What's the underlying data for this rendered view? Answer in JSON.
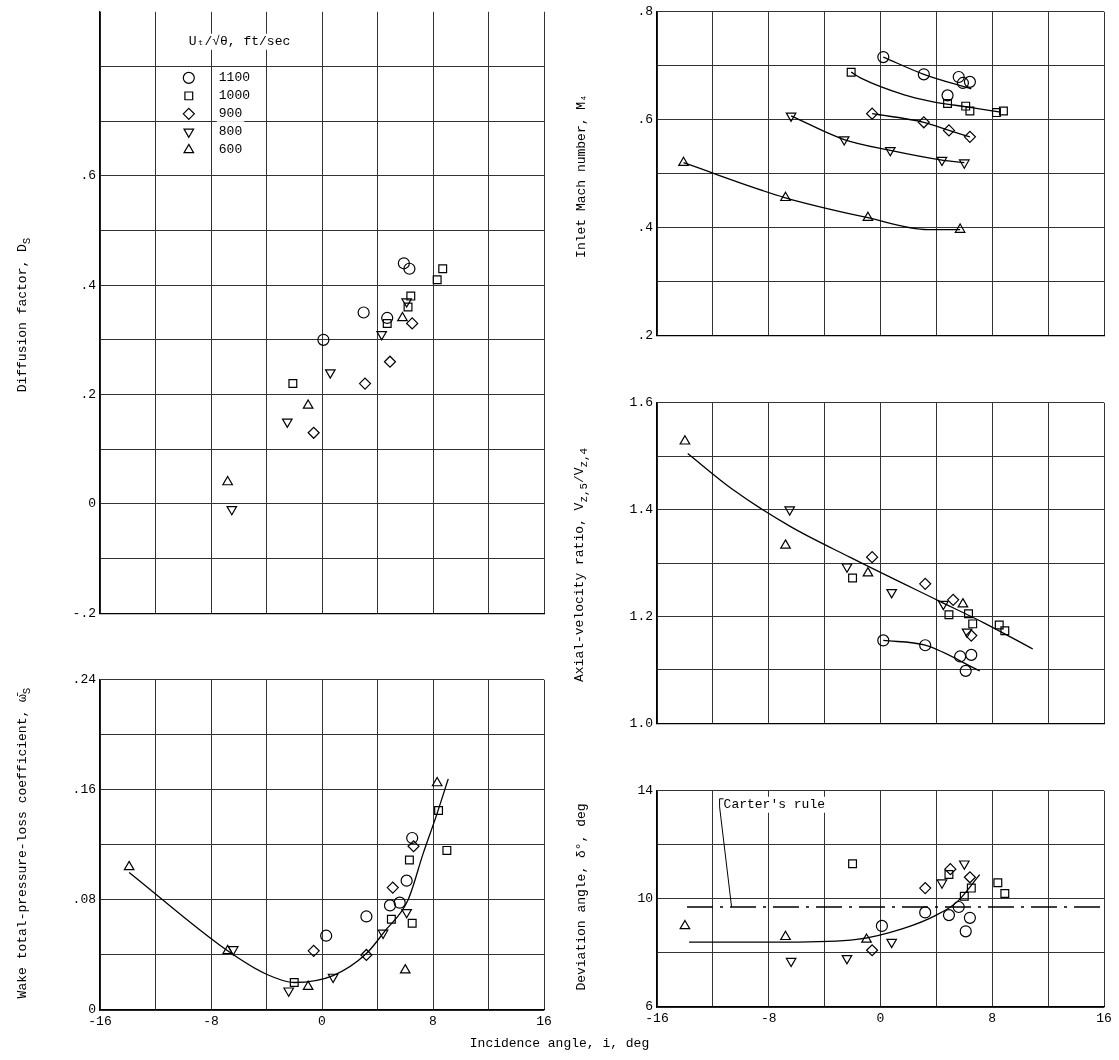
{
  "chart_data": [
    {
      "type": "scatter",
      "ylabel": "Diffusion factor, D$_{S}$",
      "legend_title": "Uₜ/√θ, ft/sec",
      "legend": "top left",
      "grid": true,
      "tick_labels": "y",
      "xlim": [
        -16,
        16
      ],
      "xticks": [
        -16,
        {
          "value": -12,
          "label": null
        },
        -8,
        {
          "value": -4,
          "label": null
        },
        0,
        {
          "value": 4,
          "label": null
        },
        8,
        {
          "value": 12,
          "label": null
        },
        16
      ],
      "ylim": [
        -0.2,
        0.9
      ],
      "yticks": [
        {
          "value": -0.2,
          "label": "-.2"
        },
        {
          "value": -0.1,
          "label": null
        },
        0,
        {
          "value": 0.1,
          "label": null
        },
        {
          "value": 0.2,
          "label": ".2"
        },
        {
          "value": 0.3,
          "label": null
        },
        {
          "value": 0.4,
          "label": ".4"
        },
        {
          "value": 0.5,
          "label": null
        },
        {
          "value": 0.6,
          "label": ".6"
        },
        {
          "value": 0.7,
          "label": null
        },
        {
          "value": 0.8,
          "label": null
        }
      ],
      "series": [
        {
          "name": "1100",
          "color": "#000000",
          "marker": "circle",
          "x": [
            0.1,
            3.0,
            4.7,
            5.9,
            6.3
          ],
          "values": [
            0.3,
            0.35,
            0.34,
            0.44,
            0.43
          ]
        },
        {
          "name": "1000",
          "color": "#000000",
          "marker": "square",
          "x": [
            -2.1,
            4.7,
            6.2,
            6.4,
            8.3,
            8.7
          ],
          "values": [
            0.22,
            0.33,
            0.36,
            0.38,
            0.41,
            0.43
          ]
        },
        {
          "name": "900",
          "color": "#000000",
          "marker": "diamond",
          "x": [
            -0.6,
            3.1,
            4.9,
            6.5
          ],
          "values": [
            0.13,
            0.22,
            0.26,
            0.33
          ]
        },
        {
          "name": "800",
          "color": "#000000",
          "marker": "triangle_down",
          "x": [
            -6.5,
            -2.5,
            0.6,
            4.3,
            6.1
          ],
          "values": [
            -0.01,
            0.15,
            0.24,
            0.31,
            0.37
          ]
        },
        {
          "name": "600",
          "color": "#000000",
          "marker": "triangle",
          "x": [
            -6.8,
            -1.0,
            5.8
          ],
          "values": [
            0.04,
            0.18,
            0.34
          ]
        }
      ]
    },
    {
      "type": "scatter",
      "ylabel": "Wake total-pressure-loss coefficient, ω̄$_{S}$",
      "grid": true,
      "xlim": [
        -16,
        16
      ],
      "xticks": [
        -16,
        {
          "value": -12,
          "label": null
        },
        -8,
        {
          "value": -4,
          "label": null
        },
        0,
        {
          "value": 4,
          "label": null
        },
        8,
        {
          "value": 12,
          "label": null
        },
        16
      ],
      "ylim": [
        0,
        0.24
      ],
      "yticks": [
        0,
        {
          "value": 0.04,
          "label": null
        },
        {
          "value": 0.08,
          "label": ".08"
        },
        {
          "value": 0.12,
          "label": null
        },
        {
          "value": 0.16,
          "label": ".16"
        },
        {
          "value": 0.2,
          "label": null
        },
        {
          "value": 0.24,
          "label": ".24"
        }
      ],
      "series": [
        {
          "color": "#000000",
          "marker": "circle",
          "x": [
            0.3,
            3.2,
            4.9,
            5.6,
            6.1,
            6.5
          ],
          "values": [
            0.054,
            0.068,
            0.076,
            0.078,
            0.094,
            0.125
          ]
        },
        {
          "color": "#000000",
          "marker": "square",
          "x": [
            -2.0,
            5.0,
            6.3,
            6.5,
            8.4,
            9.0
          ],
          "values": [
            0.02,
            0.066,
            0.109,
            0.063,
            0.145,
            0.116
          ]
        },
        {
          "color": "#000000",
          "marker": "diamond",
          "x": [
            -0.6,
            3.2,
            5.1,
            6.6
          ],
          "values": [
            0.043,
            0.04,
            0.089,
            0.119
          ]
        },
        {
          "color": "#000000",
          "marker": "triangle_down",
          "x": [
            -6.4,
            -2.4,
            0.8,
            4.4,
            6.1
          ],
          "values": [
            0.044,
            0.014,
            0.024,
            0.056,
            0.071
          ]
        },
        {
          "color": "#000000",
          "marker": "triangle",
          "x": [
            -13.9,
            -6.8,
            -1.0,
            6.0,
            8.3
          ],
          "values": [
            0.104,
            0.043,
            0.017,
            0.029,
            0.165
          ]
        },
        {
          "type": "line",
          "color": "#000000",
          "marker": "none",
          "x": [
            -13.9,
            -6.8,
            -4.0,
            -2.0,
            0.8,
            3.2,
            4.5,
            6.2,
            7.3,
            8.2,
            9.1
          ],
          "values": [
            0.1,
            0.043,
            0.026,
            0.02,
            0.025,
            0.041,
            0.057,
            0.08,
            0.114,
            0.14,
            0.168
          ]
        }
      ]
    },
    {
      "type": "scatter",
      "ylabel": "Inlet Mach number, M₄",
      "grid": true,
      "tick_labels": "y",
      "xlim": [
        -16,
        16
      ],
      "xticks": [
        -16,
        {
          "value": -12,
          "label": null
        },
        -8,
        {
          "value": -4,
          "label": null
        },
        0,
        {
          "value": 4,
          "label": null
        },
        8,
        {
          "value": 12,
          "label": null
        },
        16
      ],
      "ylim": [
        0.2,
        0.8
      ],
      "yticks": [
        {
          "value": 0.2,
          "label": ".2"
        },
        {
          "value": 0.3,
          "label": null
        },
        {
          "value": 0.4,
          "label": ".4"
        },
        {
          "value": 0.5,
          "label": null
        },
        {
          "value": 0.6,
          "label": ".6"
        },
        {
          "value": 0.7,
          "label": null
        },
        {
          "value": 0.8,
          "label": ".8"
        }
      ],
      "series": [
        {
          "color": "#000000",
          "marker": "circle",
          "x": [
            0.2,
            3.1,
            4.8,
            5.6,
            5.9,
            6.4
          ],
          "values": [
            0.716,
            0.684,
            0.645,
            0.679,
            0.668,
            0.67
          ]
        },
        {
          "color": "#000000",
          "marker": "square",
          "x": [
            -2.1,
            4.8,
            6.1,
            6.4,
            8.3,
            8.8
          ],
          "values": [
            0.688,
            0.63,
            0.625,
            0.616,
            0.613,
            0.616
          ]
        },
        {
          "color": "#000000",
          "marker": "diamond",
          "x": [
            -0.6,
            3.1,
            4.9,
            6.4
          ],
          "values": [
            0.611,
            0.595,
            0.58,
            0.568
          ]
        },
        {
          "color": "#000000",
          "marker": "triangle_down",
          "x": [
            -6.4,
            -2.6,
            0.7,
            4.4,
            6.0
          ],
          "values": [
            0.607,
            0.563,
            0.543,
            0.525,
            0.52
          ]
        },
        {
          "color": "#000000",
          "marker": "triangle",
          "x": [
            -14.1,
            -6.8,
            -0.9,
            5.7
          ],
          "values": [
            0.52,
            0.455,
            0.418,
            0.396
          ]
        },
        {
          "type": "line",
          "color": "#000000",
          "marker": "none",
          "x": [
            0.2,
            3.1,
            6.5
          ],
          "values": [
            0.716,
            0.684,
            0.657
          ]
        },
        {
          "type": "line",
          "color": "#000000",
          "marker": "none",
          "x": [
            -2.1,
            -1.4,
            1.7,
            3.6,
            6.3,
            8.6
          ],
          "values": [
            0.688,
            0.677,
            0.646,
            0.634,
            0.623,
            0.614
          ]
        },
        {
          "type": "line",
          "color": "#000000",
          "marker": "none",
          "x": [
            -0.6,
            3.1,
            4.9,
            6.4
          ],
          "values": [
            0.611,
            0.595,
            0.58,
            0.568
          ]
        },
        {
          "type": "line",
          "color": "#000000",
          "marker": "none",
          "x": [
            -6.4,
            -2.6,
            0.7,
            4.4,
            6.0
          ],
          "values": [
            0.607,
            0.563,
            0.543,
            0.525,
            0.52
          ]
        },
        {
          "type": "line",
          "color": "#000000",
          "marker": "none",
          "x": [
            -14.1,
            -6.8,
            -0.9,
            3.4,
            5.7
          ],
          "values": [
            0.52,
            0.455,
            0.418,
            0.396,
            0.396
          ]
        }
      ]
    },
    {
      "type": "scatter",
      "ylabel": "Axial-velocity ratio, V$_{z,5}$/V$_{z,4}$",
      "grid": true,
      "tick_labels": "y",
      "xlim": [
        -16,
        16
      ],
      "xticks": [
        -16,
        {
          "value": -12,
          "label": null
        },
        -8,
        {
          "value": -4,
          "label": null
        },
        0,
        {
          "value": 4,
          "label": null
        },
        8,
        {
          "value": 12,
          "label": null
        },
        16
      ],
      "ylim": [
        1.0,
        1.6
      ],
      "yticks": [
        {
          "value": 1.0,
          "label": "1.0"
        },
        {
          "value": 1.1,
          "label": null
        },
        1.2,
        {
          "value": 1.3,
          "label": null
        },
        1.4,
        {
          "value": 1.5,
          "label": null
        },
        1.6
      ],
      "series": [
        {
          "color": "#000000",
          "marker": "circle",
          "x": [
            0.2,
            3.2,
            5.7,
            6.1,
            6.5
          ],
          "values": [
            1.155,
            1.146,
            1.125,
            1.098,
            1.128
          ]
        },
        {
          "color": "#000000",
          "marker": "square",
          "x": [
            -2.0,
            4.9,
            6.3,
            6.6,
            8.5,
            8.9
          ],
          "values": [
            1.272,
            1.203,
            1.205,
            1.186,
            1.184,
            1.173
          ]
        },
        {
          "color": "#000000",
          "marker": "diamond",
          "x": [
            -0.6,
            3.2,
            5.2,
            6.5
          ],
          "values": [
            1.311,
            1.261,
            1.231,
            1.164
          ]
        },
        {
          "color": "#000000",
          "marker": "triangle_down",
          "x": [
            -6.5,
            -2.4,
            0.8,
            4.5,
            6.2
          ],
          "values": [
            1.4,
            1.293,
            1.245,
            1.223,
            1.171
          ]
        },
        {
          "color": "#000000",
          "marker": "triangle",
          "x": [
            -14.0,
            -6.8,
            -0.9,
            5.9
          ],
          "values": [
            1.528,
            1.333,
            1.281,
            1.223
          ]
        },
        {
          "type": "line",
          "color": "#000000",
          "marker": "none",
          "x": [
            -13.8,
            -10.6,
            -6.5,
            -2.2,
            4.1,
            7.4,
            10.9
          ],
          "values": [
            1.505,
            1.438,
            1.369,
            1.311,
            1.23,
            1.188,
            1.139
          ]
        },
        {
          "type": "line",
          "color": "#000000",
          "marker": "none",
          "x": [
            0.2,
            3.2,
            7.1
          ],
          "values": [
            1.155,
            1.146,
            1.098
          ]
        }
      ]
    },
    {
      "type": "scatter",
      "ylabel": "Deviation angle, δ°, deg",
      "xlabel": "Incidence angle, i, deg",
      "grid": true,
      "xlim": [
        -16,
        16
      ],
      "xticks": [
        -16,
        {
          "value": -12,
          "label": null
        },
        -8,
        {
          "value": -4,
          "label": null
        },
        0,
        {
          "value": 4,
          "label": null
        },
        8,
        {
          "value": 12,
          "label": null
        },
        16
      ],
      "ylim": [
        6,
        14
      ],
      "yticks": [
        6,
        {
          "value": 8,
          "label": null
        },
        10,
        {
          "value": 12,
          "label": null
        },
        14
      ],
      "ref_lines": [
        {
          "axis": "y",
          "value": 9.7,
          "label": "Carter's rule",
          "line_style": "dashed"
        }
      ],
      "series": [
        {
          "color": "#000000",
          "marker": "circle",
          "x": [
            0.1,
            3.2,
            4.9,
            5.6,
            6.1,
            6.4
          ],
          "values": [
            9.0,
            9.5,
            9.4,
            9.7,
            8.8,
            9.3
          ]
        },
        {
          "color": "#000000",
          "marker": "square",
          "x": [
            -2.0,
            4.9,
            6.0,
            6.5,
            8.4,
            8.9
          ],
          "values": [
            11.3,
            10.9,
            10.1,
            10.4,
            10.6,
            10.2
          ]
        },
        {
          "color": "#000000",
          "marker": "diamond",
          "x": [
            -0.6,
            3.2,
            5.0,
            6.4
          ],
          "values": [
            8.1,
            10.4,
            11.1,
            10.8
          ]
        },
        {
          "color": "#000000",
          "marker": "triangle_down",
          "x": [
            -6.4,
            -2.4,
            0.8,
            4.4,
            6.0
          ],
          "values": [
            7.7,
            7.8,
            8.4,
            10.6,
            11.3
          ]
        },
        {
          "color": "#000000",
          "marker": "triangle",
          "x": [
            -14.0,
            -6.8,
            -1.0
          ],
          "values": [
            9.0,
            8.6,
            8.5
          ]
        },
        {
          "type": "line",
          "color": "#000000",
          "marker": "none",
          "x": [
            -13.7,
            -6.7,
            -1.7,
            1.6,
            4.0,
            5.5,
            7.1
          ],
          "values": [
            8.4,
            8.4,
            8.5,
            8.9,
            9.4,
            9.9,
            10.9
          ]
        }
      ]
    }
  ]
}
